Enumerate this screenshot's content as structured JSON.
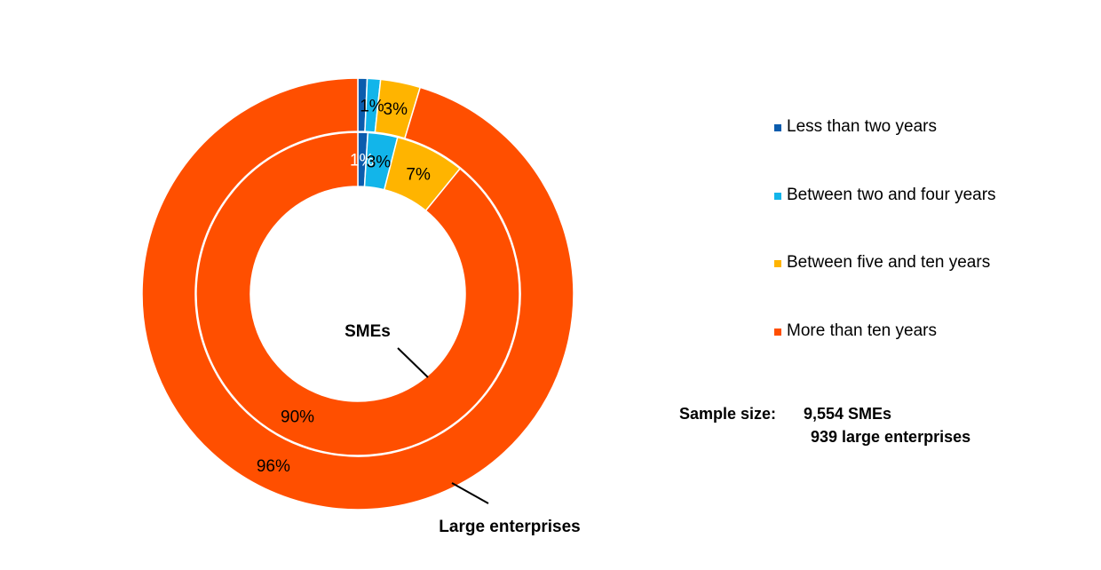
{
  "chart_data": {
    "type": "donut",
    "title": "",
    "categories": [
      "Less than two years",
      "Between two and four years",
      "Between five and ten years",
      "More than ten years"
    ],
    "colors": [
      "#0B5CAD",
      "#12B5EA",
      "#FFB400",
      "#FF4F00"
    ],
    "rings": [
      {
        "name": "SMEs",
        "position": "inner",
        "values": [
          1,
          3,
          7,
          90
        ],
        "labels": [
          "1%",
          "3%",
          "7%",
          "90%"
        ]
      },
      {
        "name": "Large enterprises",
        "position": "outer",
        "values": [
          0.7,
          1,
          3,
          96
        ],
        "labels": [
          "",
          "1%",
          "3%",
          "96%"
        ]
      }
    ],
    "legend": {
      "position": "right"
    }
  },
  "sample": {
    "label": "Sample size:",
    "smes": "9,554 SMEs",
    "large": "939 large enterprises"
  }
}
